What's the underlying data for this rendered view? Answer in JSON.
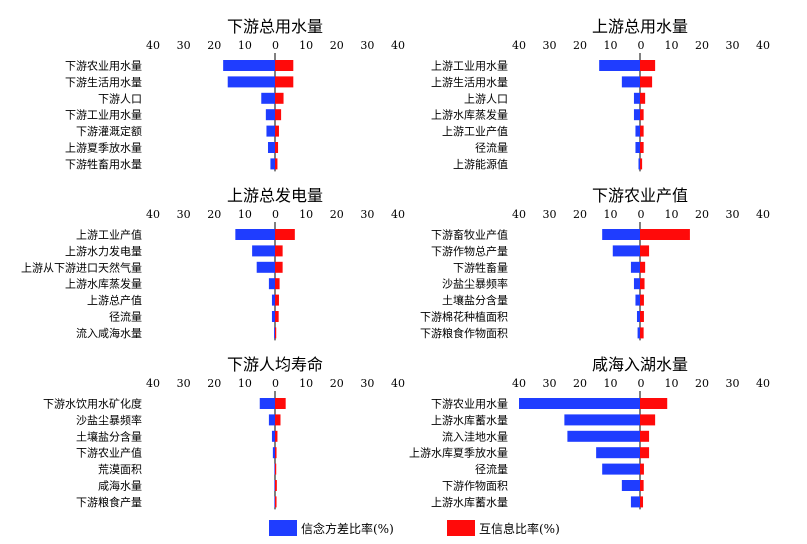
{
  "colors": {
    "entropy": "#1f3dff",
    "mutual": "#ff0a0a"
  },
  "legend": {
    "entropy_label": "信念方差比率(%)",
    "mutual_label": "互信息比率(%)"
  },
  "chart_data": [
    {
      "type": "bar",
      "orientation": "horizontal-diverging",
      "title": "下游总用水量",
      "tick_labels": [
        "40",
        "30",
        "20",
        "10",
        "0",
        "10",
        "20",
        "30",
        "40"
      ],
      "xlim": [
        -40,
        40
      ],
      "categories": [
        "下游农业用水量",
        "下游生活用水量",
        "下游人口",
        "下游工业用水量",
        "下游灌溉定额",
        "上游夏季放水量",
        "下游牲畜用水量"
      ],
      "series": [
        {
          "values": [
            17,
            15.5,
            4.5,
            3,
            2.8,
            2.3,
            1.5
          ]
        },
        {
          "values": [
            6,
            6,
            2.8,
            2,
            1.3,
            1,
            0.8
          ]
        }
      ]
    },
    {
      "type": "bar",
      "orientation": "horizontal-diverging",
      "title": "上游总用水量",
      "tick_labels": [
        "40",
        "30",
        "20",
        "10",
        "0",
        "10",
        "20",
        "30",
        "40"
      ],
      "xlim": [
        -40,
        40
      ],
      "categories": [
        "上游工业用水量",
        "上游生活用水量",
        "上游人口",
        "上游水库蒸发量",
        "上游工业产值",
        "径流量",
        "上游能源值"
      ],
      "series": [
        {
          "values": [
            13.5,
            6,
            2,
            2,
            1.5,
            1.5,
            0.5
          ]
        },
        {
          "values": [
            5,
            4,
            1.7,
            1.2,
            1.2,
            1.2,
            0.7
          ]
        }
      ]
    },
    {
      "type": "bar",
      "orientation": "horizontal-diverging",
      "title": "上游总发电量",
      "tick_labels": [
        "40",
        "30",
        "20",
        "10",
        "0",
        "10",
        "20",
        "30",
        "40"
      ],
      "xlim": [
        -40,
        40
      ],
      "categories": [
        "上游工业产值",
        "上游水力发电量",
        "上游从下游进口天然气量",
        "上游水库蒸发量",
        "上游总产值",
        "径流量",
        "流入咸海水量"
      ],
      "series": [
        {
          "values": [
            13,
            7.5,
            6,
            2,
            1,
            1,
            0.3
          ]
        },
        {
          "values": [
            6.5,
            2.5,
            2.5,
            1.5,
            1.3,
            1.2,
            0.4
          ]
        }
      ]
    },
    {
      "type": "bar",
      "orientation": "horizontal-diverging",
      "title": "下游农业产值",
      "tick_labels": [
        "40",
        "30",
        "20",
        "10",
        "0",
        "10",
        "20",
        "30",
        "40"
      ],
      "xlim": [
        -40,
        40
      ],
      "categories": [
        "下游畜牧业产值",
        "下游作物总产量",
        "下游牲畜量",
        "沙盐尘暴频率",
        "土壤盐分含量",
        "下游棉花种植面积",
        "下游粮食作物面积"
      ],
      "series": [
        {
          "values": [
            12.5,
            9,
            3,
            2,
            1.5,
            1,
            0.8
          ]
        },
        {
          "values": [
            16.5,
            3,
            1.7,
            1.5,
            1.3,
            1.3,
            1.2
          ]
        }
      ]
    },
    {
      "type": "bar",
      "orientation": "horizontal-diverging",
      "title": "下游人均寿命",
      "tick_labels": [
        "40",
        "30",
        "20",
        "10",
        "0",
        "10",
        "20",
        "30",
        "40"
      ],
      "xlim": [
        -40,
        40
      ],
      "categories": [
        "下游水饮用水矿化度",
        "沙盐尘暴频率",
        "土壤盐分含量",
        "下游农业产值",
        "荒漠面积",
        "咸海水量",
        "下游粮食产量"
      ],
      "series": [
        {
          "values": [
            5,
            2,
            1,
            0.7,
            0.2,
            0.2,
            0.2
          ]
        },
        {
          "values": [
            3.5,
            1.8,
            0.8,
            0.5,
            0.4,
            0.6,
            0.5
          ]
        }
      ]
    },
    {
      "type": "bar",
      "orientation": "horizontal-diverging",
      "title": "咸海入湖水量",
      "tick_labels": [
        "40",
        "30",
        "20",
        "10",
        "0",
        "10",
        "20",
        "30",
        "40"
      ],
      "xlim": [
        -40,
        40
      ],
      "categories": [
        "下游农业用水量",
        "上游水库蓄水量",
        "流入洼地水量",
        "上游水库夏季放水量",
        "径流量",
        "下游作物面积",
        "上游水库蓄水量"
      ],
      "series": [
        {
          "values": [
            40,
            25,
            24,
            14.5,
            12.5,
            6,
            3
          ]
        },
        {
          "values": [
            9,
            5,
            3,
            3,
            1.3,
            1.2,
            1
          ]
        }
      ]
    }
  ]
}
